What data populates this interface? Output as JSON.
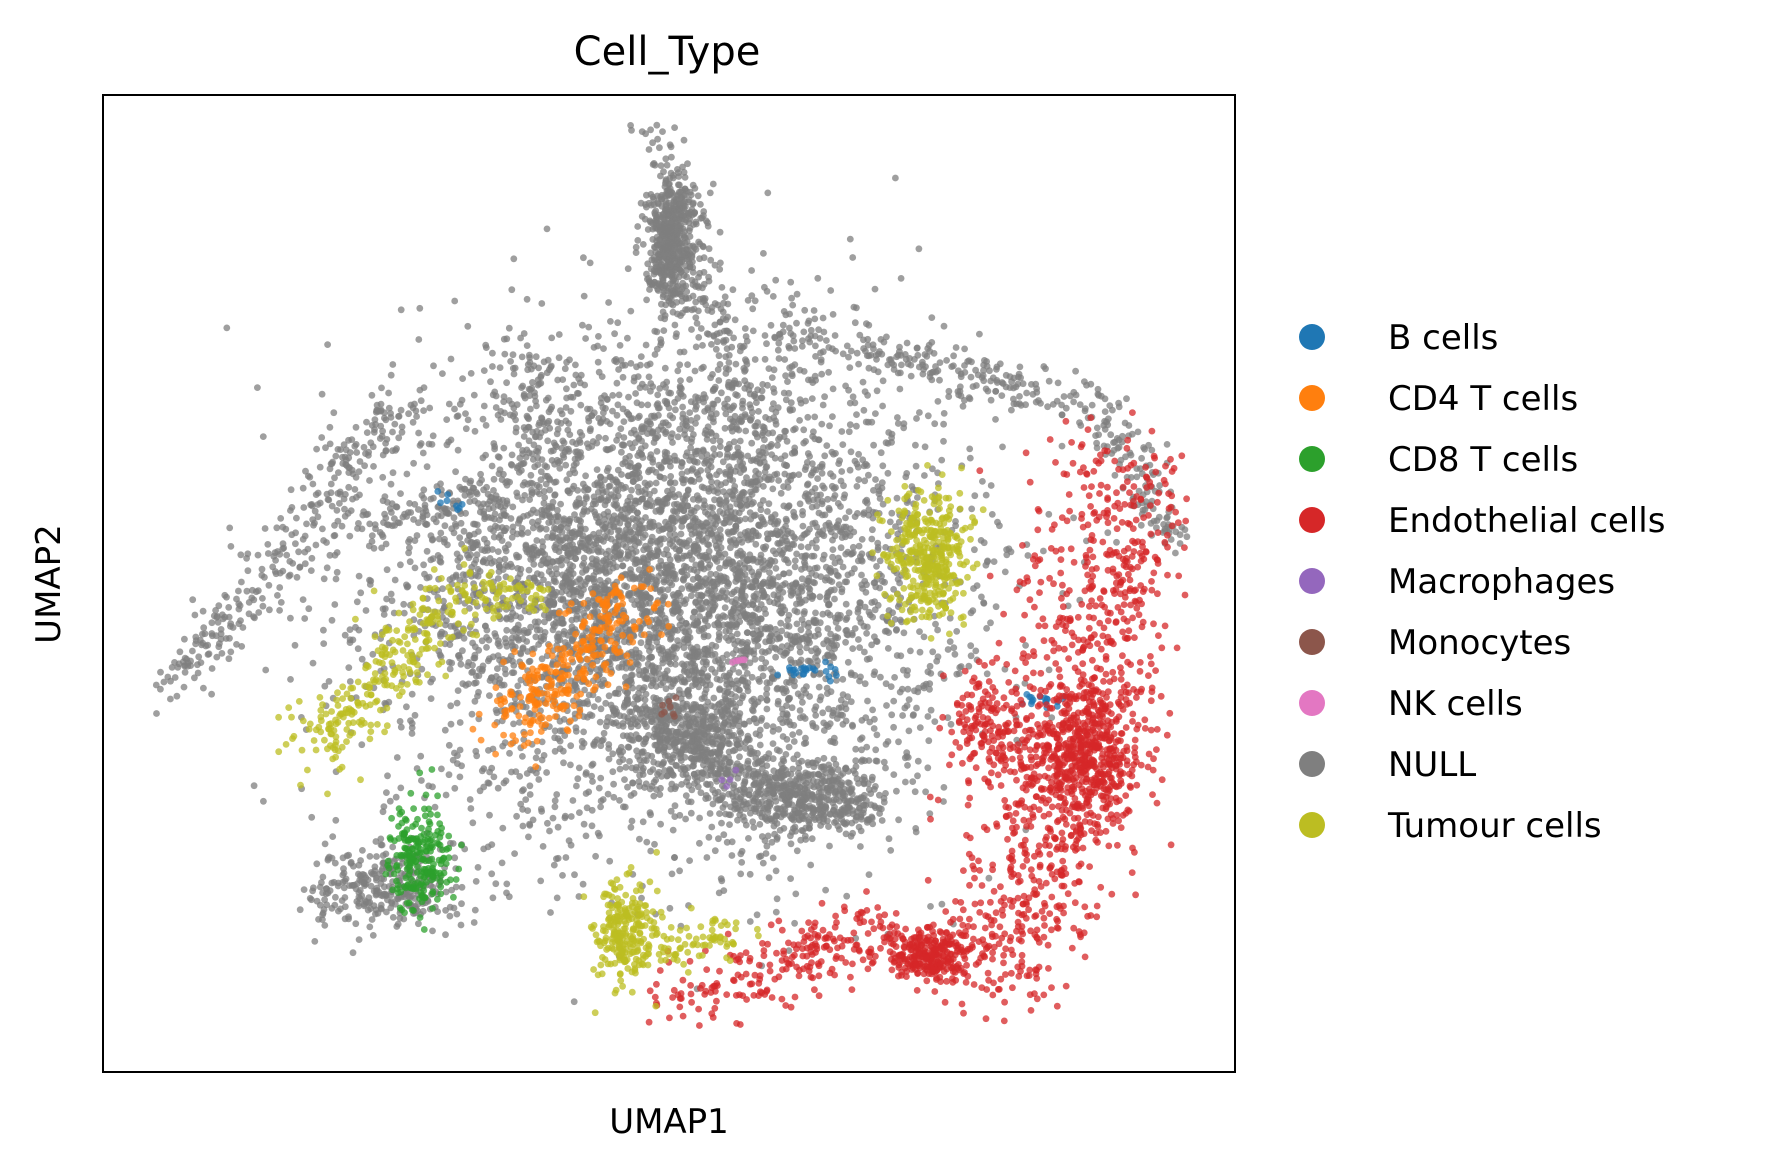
{
  "chart_data": {
    "type": "scatter",
    "title": "Cell_Type",
    "xlabel": "UMAP1",
    "ylabel": "UMAP2",
    "xticks": false,
    "yticks": false,
    "grid": false,
    "legend_position": "right",
    "xlim": [
      0,
      100
    ],
    "ylim": [
      0,
      100
    ],
    "series": [
      {
        "name": "B cells",
        "color": "#1f77b4"
      },
      {
        "name": "CD4 T cells",
        "color": "#ff7f0e"
      },
      {
        "name": "CD8 T cells",
        "color": "#2ca02c"
      },
      {
        "name": "Endothelial cells",
        "color": "#d62728"
      },
      {
        "name": "Macrophages",
        "color": "#9467bd"
      },
      {
        "name": "Monocytes",
        "color": "#8c564b"
      },
      {
        "name": "NK cells",
        "color": "#e377c2"
      },
      {
        "name": "NULL",
        "color": "#7f7f7f"
      },
      {
        "name": "Tumour cells",
        "color": "#bcbd22"
      }
    ],
    "clusters": [
      {
        "series": "NULL",
        "shape": "blob",
        "x": 50,
        "y": 50,
        "sx": 22,
        "sy": 22,
        "n": 5200
      },
      {
        "series": "NULL",
        "shape": "blob",
        "x": 50,
        "y": 85,
        "sx": 1.8,
        "sy": 6,
        "n": 500
      },
      {
        "series": "NULL",
        "shape": "blob",
        "x": 62,
        "y": 28,
        "sx": 7,
        "sy": 4,
        "n": 550
      },
      {
        "series": "NULL",
        "shape": "blob",
        "x": 52,
        "y": 34,
        "sx": 5,
        "sy": 4,
        "n": 400
      },
      {
        "series": "NULL",
        "shape": "blob",
        "x": 25,
        "y": 19,
        "sx": 6,
        "sy": 4,
        "n": 300
      },
      {
        "series": "NULL",
        "shape": "line",
        "x1": 6,
        "y1": 39,
        "x2": 26,
        "y2": 68,
        "width": 1.3,
        "n": 260
      },
      {
        "series": "NULL",
        "shape": "line",
        "x1": 49,
        "y1": 98,
        "x2": 57,
        "y2": 66,
        "width": 1.2,
        "n": 220
      },
      {
        "series": "NULL",
        "shape": "line",
        "x1": 60,
        "y1": 76,
        "x2": 88,
        "y2": 68,
        "width": 1.4,
        "n": 220
      },
      {
        "series": "NULL",
        "shape": "line",
        "x1": 88,
        "y1": 68,
        "x2": 95,
        "y2": 54,
        "width": 1.2,
        "n": 120
      },
      {
        "series": "NULL",
        "shape": "line",
        "x1": 37,
        "y1": 74,
        "x2": 42,
        "y2": 44,
        "width": 1.5,
        "n": 160
      },
      {
        "series": "NULL",
        "shape": "line",
        "x1": 20,
        "y1": 56,
        "x2": 34,
        "y2": 58,
        "width": 1.2,
        "n": 90
      },
      {
        "series": "Endothelial cells",
        "shape": "line",
        "x1": 91,
        "y1": 62,
        "x2": 80,
        "y2": 10,
        "width": 3.5,
        "n": 900
      },
      {
        "series": "Endothelial cells",
        "shape": "blob",
        "x": 87,
        "y": 32,
        "sx": 4.5,
        "sy": 7,
        "n": 500
      },
      {
        "series": "Endothelial cells",
        "shape": "blob",
        "x": 73,
        "y": 12,
        "sx": 4,
        "sy": 2.5,
        "n": 280
      },
      {
        "series": "Endothelial cells",
        "shape": "line",
        "x1": 50,
        "y1": 7,
        "x2": 70,
        "y2": 15,
        "width": 1.8,
        "n": 220
      },
      {
        "series": "Endothelial cells",
        "shape": "blob",
        "x": 78,
        "y": 35,
        "sx": 3.5,
        "sy": 6,
        "n": 160
      },
      {
        "series": "Tumour cells",
        "shape": "blob",
        "x": 73,
        "y": 53,
        "sx": 3.2,
        "sy": 6,
        "n": 380
      },
      {
        "series": "Tumour cells",
        "shape": "line",
        "x1": 19,
        "y1": 33,
        "x2": 32,
        "y2": 50,
        "width": 1.8,
        "n": 260
      },
      {
        "series": "Tumour cells",
        "shape": "line",
        "x1": 32,
        "y1": 49,
        "x2": 39,
        "y2": 49,
        "width": 1.0,
        "n": 60
      },
      {
        "series": "Tumour cells",
        "shape": "blob",
        "x": 46,
        "y": 14,
        "sx": 2.5,
        "sy": 5,
        "n": 240
      },
      {
        "series": "Tumour cells",
        "shape": "line",
        "x1": 49,
        "y1": 12,
        "x2": 56,
        "y2": 14,
        "width": 1.2,
        "n": 70
      },
      {
        "series": "CD4 T cells",
        "shape": "line",
        "x1": 36,
        "y1": 35,
        "x2": 47,
        "y2": 49,
        "width": 1.8,
        "n": 280
      },
      {
        "series": "CD8 T cells",
        "shape": "blob",
        "x": 28,
        "y": 22,
        "sx": 2.4,
        "sy": 5,
        "n": 220
      },
      {
        "series": "B cells",
        "shape": "line",
        "x1": 60,
        "y1": 41,
        "x2": 65,
        "y2": 41,
        "width": 0.4,
        "n": 24
      },
      {
        "series": "B cells",
        "shape": "line",
        "x1": 81,
        "y1": 38,
        "x2": 85,
        "y2": 38,
        "width": 0.4,
        "n": 18
      },
      {
        "series": "B cells",
        "shape": "line",
        "x1": 30,
        "y1": 59,
        "x2": 31.5,
        "y2": 57.5,
        "width": 0.3,
        "n": 8
      },
      {
        "series": "NK cells",
        "shape": "blob",
        "x": 56,
        "y": 42,
        "sx": 0.5,
        "sy": 0.8,
        "n": 5
      },
      {
        "series": "Monocytes",
        "shape": "blob",
        "x": 50,
        "y": 37,
        "sx": 1.2,
        "sy": 1,
        "n": 8
      },
      {
        "series": "Macrophages",
        "shape": "blob",
        "x": 55,
        "y": 30,
        "sx": 1.5,
        "sy": 1,
        "n": 4
      }
    ]
  }
}
